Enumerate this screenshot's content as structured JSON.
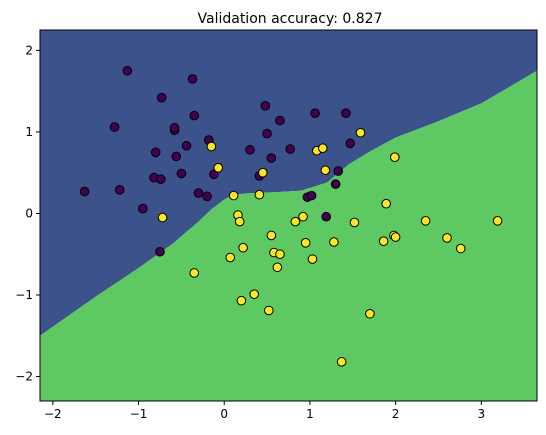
{
  "chart_data": {
    "type": "scatter",
    "title": "Validation accuracy: 0.827",
    "xlabel": "",
    "ylabel": "",
    "xlim": [
      -2.15,
      3.65
    ],
    "ylim": [
      -2.3,
      2.25
    ],
    "xticks": [
      -2,
      -1,
      0,
      1,
      2,
      3
    ],
    "yticks": [
      -2,
      -1,
      0,
      1,
      2
    ],
    "grid": false,
    "legend": "none",
    "colors": {
      "region_0": "#3b528b",
      "region_1": "#5ec962",
      "class_0": "#440154",
      "class_1": "#fde725",
      "marker_edge": "#000000"
    },
    "decision_boundary": [
      [
        -2.15,
        -1.5
      ],
      [
        -1.5,
        -1.02
      ],
      [
        -1.0,
        -0.67
      ],
      [
        -0.6,
        -0.37
      ],
      [
        -0.3,
        -0.1
      ],
      [
        -0.15,
        0.05
      ],
      [
        0.0,
        0.17
      ],
      [
        0.1,
        0.23
      ],
      [
        0.3,
        0.25
      ],
      [
        0.6,
        0.26
      ],
      [
        0.9,
        0.28
      ],
      [
        1.2,
        0.38
      ],
      [
        1.45,
        0.6
      ],
      [
        1.7,
        0.76
      ],
      [
        2.0,
        0.93
      ],
      [
        2.5,
        1.13
      ],
      [
        3.0,
        1.35
      ],
      [
        3.65,
        1.75
      ]
    ],
    "series": [
      {
        "class": 0,
        "points": [
          [
            -1.63,
            0.27
          ],
          [
            -1.22,
            0.29
          ],
          [
            -1.13,
            1.75
          ],
          [
            -1.28,
            1.06
          ],
          [
            -0.95,
            0.06
          ],
          [
            -0.8,
            0.75
          ],
          [
            -0.82,
            0.44
          ],
          [
            -0.73,
            1.42
          ],
          [
            -0.74,
            0.42
          ],
          [
            -0.58,
            1.02
          ],
          [
            -0.58,
            1.05
          ],
          [
            -0.56,
            0.7
          ],
          [
            -0.5,
            0.49
          ],
          [
            -0.44,
            0.83
          ],
          [
            -0.37,
            1.65
          ],
          [
            -0.35,
            1.2
          ],
          [
            -0.3,
            0.25
          ],
          [
            -0.18,
            0.9
          ],
          [
            -0.12,
            0.48
          ],
          [
            -0.2,
            0.21
          ],
          [
            0.3,
            0.78
          ],
          [
            0.48,
            1.32
          ],
          [
            0.5,
            0.98
          ],
          [
            0.41,
            0.46
          ],
          [
            0.55,
            0.68
          ],
          [
            0.65,
            1.14
          ],
          [
            0.77,
            0.79
          ],
          [
            0.97,
            0.2
          ],
          [
            1.02,
            0.22
          ],
          [
            1.06,
            1.23
          ],
          [
            1.19,
            -0.04
          ],
          [
            1.33,
            0.52
          ],
          [
            1.42,
            1.23
          ],
          [
            1.47,
            0.86
          ],
          [
            1.3,
            0.36
          ],
          [
            -0.75,
            -0.47
          ]
        ]
      },
      {
        "class": 1,
        "points": [
          [
            -0.72,
            -0.05
          ],
          [
            -0.35,
            -0.73
          ],
          [
            -0.15,
            0.82
          ],
          [
            -0.07,
            0.56
          ],
          [
            0.07,
            -0.54
          ],
          [
            0.11,
            0.22
          ],
          [
            0.16,
            -0.02
          ],
          [
            0.18,
            -0.1
          ],
          [
            0.2,
            -1.07
          ],
          [
            0.22,
            -0.42
          ],
          [
            0.35,
            -0.99
          ],
          [
            0.41,
            0.23
          ],
          [
            0.45,
            0.5
          ],
          [
            0.52,
            -1.19
          ],
          [
            0.55,
            -0.27
          ],
          [
            0.58,
            -0.48
          ],
          [
            0.62,
            -0.66
          ],
          [
            0.65,
            -0.5
          ],
          [
            0.83,
            -0.1
          ],
          [
            0.92,
            -0.04
          ],
          [
            0.95,
            -0.36
          ],
          [
            1.03,
            -0.56
          ],
          [
            1.08,
            0.77
          ],
          [
            1.15,
            0.8
          ],
          [
            1.18,
            0.53
          ],
          [
            1.28,
            -0.35
          ],
          [
            1.52,
            -0.11
          ],
          [
            1.59,
            0.99
          ],
          [
            1.7,
            -1.23
          ],
          [
            1.37,
            -1.82
          ],
          [
            1.86,
            -0.34
          ],
          [
            1.89,
            0.12
          ],
          [
            1.98,
            -0.27
          ],
          [
            2.0,
            -0.29
          ],
          [
            1.99,
            0.69
          ],
          [
            2.35,
            -0.09
          ],
          [
            2.6,
            -0.3
          ],
          [
            2.76,
            -0.43
          ],
          [
            3.19,
            -0.09
          ]
        ]
      }
    ]
  }
}
